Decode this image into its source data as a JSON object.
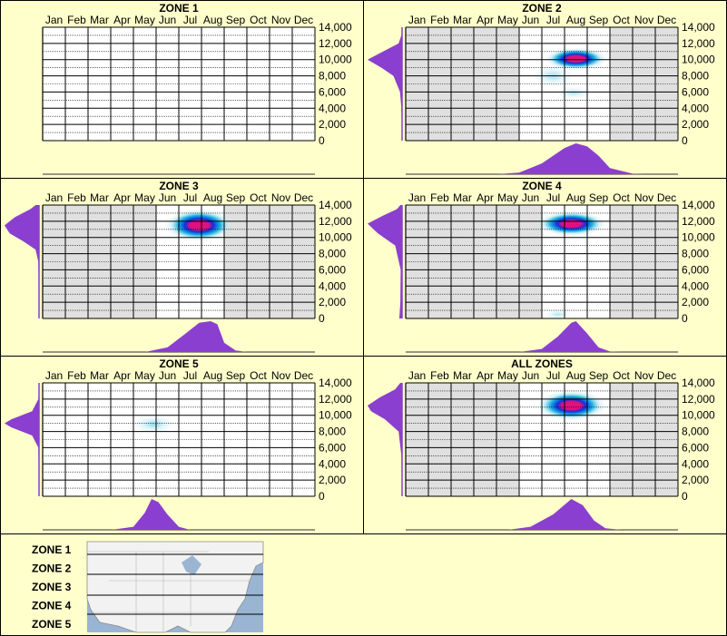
{
  "colors": {
    "background": "#ffffcc",
    "border": "#000000",
    "plot_active": "#ffffff",
    "plot_inactive": "#e0e0e0",
    "density": "#8a3fd0",
    "heat_low": "#bfeaf5",
    "heat_mid": "#00aadd",
    "heat_high": "#1030e0",
    "heat_peak": "#e0107e"
  },
  "chart_data": [
    {
      "type": "heatmap",
      "title": "ZONE 1",
      "months": [
        "Jan",
        "Feb",
        "Mar",
        "Apr",
        "May",
        "Jun",
        "Jul",
        "Aug",
        "Sep",
        "Oct",
        "Nov",
        "Dec"
      ],
      "y_ticks": [
        "14,000",
        "12,000",
        "10,000",
        "8,000",
        "6,000",
        "4,000",
        "2,000",
        "0"
      ],
      "ylim": [
        0,
        14000
      ],
      "active_months": [],
      "hotspots": [],
      "elevation_density": [],
      "month_density": []
    },
    {
      "type": "heatmap",
      "title": "ZONE 2",
      "months": [
        "Jan",
        "Feb",
        "Mar",
        "Apr",
        "May",
        "Jun",
        "Jul",
        "Aug",
        "Sep",
        "Oct",
        "Nov",
        "Dec"
      ],
      "y_ticks": [
        "14,000",
        "12,000",
        "10,000",
        "8,000",
        "6,000",
        "4,000",
        "2,000",
        "0"
      ],
      "ylim": [
        0,
        14000
      ],
      "active_months": [
        "Jun",
        "Jul",
        "Aug",
        "Sep"
      ],
      "hotspots": [
        {
          "month": 8.0,
          "elevation": 10100,
          "intensity": 1.0,
          "spread_month": 0.9,
          "spread_elev": 900
        },
        {
          "month": 7.0,
          "elevation": 8000,
          "intensity": 0.2,
          "spread_month": 0.6,
          "spread_elev": 900
        },
        {
          "month": 7.9,
          "elevation": 5900,
          "intensity": 0.15,
          "spread_month": 0.5,
          "spread_elev": 500
        }
      ],
      "elevation_density": [
        [
          0,
          0
        ],
        [
          4000,
          0.02
        ],
        [
          6000,
          0.06
        ],
        [
          8000,
          0.25
        ],
        [
          9000,
          0.6
        ],
        [
          10000,
          1.0
        ],
        [
          11000,
          0.55
        ],
        [
          12000,
          0.1
        ],
        [
          13000,
          0.02
        ],
        [
          14000,
          0
        ]
      ],
      "month_density": [
        [
          4.5,
          0
        ],
        [
          5.5,
          0.05
        ],
        [
          6.5,
          0.35
        ],
        [
          7.5,
          0.85
        ],
        [
          8.0,
          1.0
        ],
        [
          8.5,
          0.9
        ],
        [
          9.0,
          0.6
        ],
        [
          9.5,
          0.2
        ],
        [
          10.5,
          0.02
        ],
        [
          11,
          0
        ]
      ]
    },
    {
      "type": "heatmap",
      "title": "ZONE 3",
      "months": [
        "Jan",
        "Feb",
        "Mar",
        "Apr",
        "May",
        "Jun",
        "Jul",
        "Aug",
        "Sep",
        "Oct",
        "Nov",
        "Dec"
      ],
      "y_ticks": [
        "14,000",
        "12,000",
        "10,000",
        "8,000",
        "6,000",
        "4,000",
        "2,000",
        "0"
      ],
      "ylim": [
        0,
        14000
      ],
      "active_months": [
        "Jun",
        "Jul",
        "Aug"
      ],
      "hotspots": [
        {
          "month": 7.4,
          "elevation": 11500,
          "intensity": 1.0,
          "spread_month": 1.0,
          "spread_elev": 1300
        }
      ],
      "elevation_density": [
        [
          0,
          0
        ],
        [
          7000,
          0.02
        ],
        [
          8500,
          0.1
        ],
        [
          9500,
          0.45
        ],
        [
          10500,
          0.85
        ],
        [
          11500,
          1.0
        ],
        [
          12500,
          0.7
        ],
        [
          13500,
          0.25
        ],
        [
          14000,
          0.1
        ]
      ],
      "month_density": [
        [
          5.0,
          0
        ],
        [
          6.0,
          0.15
        ],
        [
          6.8,
          0.6
        ],
        [
          7.4,
          0.95
        ],
        [
          7.9,
          1.0
        ],
        [
          8.2,
          0.9
        ],
        [
          8.5,
          0.3
        ],
        [
          9.0,
          0.05
        ],
        [
          9.5,
          0
        ]
      ]
    },
    {
      "type": "heatmap",
      "title": "ZONE 4",
      "months": [
        "Jan",
        "Feb",
        "Mar",
        "Apr",
        "May",
        "Jun",
        "Jul",
        "Aug",
        "Sep",
        "Oct",
        "Nov",
        "Dec"
      ],
      "y_ticks": [
        "14,000",
        "12,000",
        "10,000",
        "8,000",
        "6,000",
        "4,000",
        "2,000",
        "0"
      ],
      "ylim": [
        0,
        14000
      ],
      "active_months": [
        "Jul",
        "Aug",
        "Sep"
      ],
      "hotspots": [
        {
          "month": 7.8,
          "elevation": 11700,
          "intensity": 0.85,
          "spread_month": 1.0,
          "spread_elev": 1000
        },
        {
          "month": 7.2,
          "elevation": 500,
          "intensity": 0.12,
          "spread_month": 0.4,
          "spread_elev": 400
        }
      ],
      "elevation_density": [
        [
          0,
          0.08
        ],
        [
          2000,
          0.05
        ],
        [
          6000,
          0.04
        ],
        [
          9000,
          0.2
        ],
        [
          10500,
          0.7
        ],
        [
          11700,
          1.0
        ],
        [
          12700,
          0.55
        ],
        [
          13500,
          0.15
        ],
        [
          14000,
          0.05
        ]
      ],
      "month_density": [
        [
          5.5,
          0
        ],
        [
          6.5,
          0.1
        ],
        [
          7.2,
          0.5
        ],
        [
          7.8,
          0.95
        ],
        [
          8.0,
          1.0
        ],
        [
          8.5,
          0.6
        ],
        [
          9.0,
          0.15
        ],
        [
          9.5,
          0.02
        ],
        [
          10,
          0
        ]
      ]
    },
    {
      "type": "heatmap",
      "title": "ZONE 5",
      "months": [
        "Jan",
        "Feb",
        "Mar",
        "Apr",
        "May",
        "Jun",
        "Jul",
        "Aug",
        "Sep",
        "Oct",
        "Nov",
        "Dec"
      ],
      "y_ticks": [
        "14,000",
        "12,000",
        "10,000",
        "8,000",
        "6,000",
        "4,000",
        "2,000",
        "0"
      ],
      "ylim": [
        0,
        14000
      ],
      "active_months": [],
      "hotspots": [
        {
          "month": 5.4,
          "elevation": 8900,
          "intensity": 0.35,
          "spread_month": 0.6,
          "spread_elev": 700
        }
      ],
      "elevation_density": [
        [
          0,
          0
        ],
        [
          6000,
          0.02
        ],
        [
          7500,
          0.2
        ],
        [
          8500,
          0.8
        ],
        [
          9000,
          1.0
        ],
        [
          9500,
          0.8
        ],
        [
          10500,
          0.2
        ],
        [
          12000,
          0.02
        ],
        [
          14000,
          0
        ]
      ],
      "month_density": [
        [
          3.5,
          0
        ],
        [
          4.5,
          0.1
        ],
        [
          5.0,
          0.55
        ],
        [
          5.3,
          1.0
        ],
        [
          5.6,
          0.9
        ],
        [
          6.0,
          0.5
        ],
        [
          6.5,
          0.1
        ],
        [
          7.0,
          0
        ]
      ]
    },
    {
      "type": "heatmap",
      "title": "ALL ZONES",
      "months": [
        "Jan",
        "Feb",
        "Mar",
        "Apr",
        "May",
        "Jun",
        "Jul",
        "Aug",
        "Sep",
        "Oct",
        "Nov",
        "Dec"
      ],
      "y_ticks": [
        "14,000",
        "12,000",
        "10,000",
        "8,000",
        "6,000",
        "4,000",
        "2,000",
        "0"
      ],
      "ylim": [
        0,
        14000
      ],
      "active_months": [
        "Jun",
        "Jul",
        "Aug",
        "Sep"
      ],
      "hotspots": [
        {
          "month": 7.8,
          "elevation": 11200,
          "intensity": 0.95,
          "spread_month": 1.0,
          "spread_elev": 1200
        }
      ],
      "elevation_density": [
        [
          0,
          0
        ],
        [
          5000,
          0.02
        ],
        [
          8000,
          0.1
        ],
        [
          9500,
          0.5
        ],
        [
          10500,
          0.9
        ],
        [
          11200,
          1.0
        ],
        [
          12200,
          0.65
        ],
        [
          13200,
          0.2
        ],
        [
          14000,
          0.05
        ]
      ],
      "month_density": [
        [
          5.0,
          0
        ],
        [
          6.0,
          0.1
        ],
        [
          7.0,
          0.5
        ],
        [
          7.8,
          1.0
        ],
        [
          8.3,
          0.8
        ],
        [
          8.8,
          0.3
        ],
        [
          9.3,
          0.05
        ],
        [
          10,
          0
        ]
      ]
    }
  ],
  "legend": {
    "zones": [
      "ZONE 1",
      "ZONE 2",
      "ZONE 3",
      "ZONE 4",
      "ZONE 5"
    ],
    "map_icon": "north-america-map"
  }
}
